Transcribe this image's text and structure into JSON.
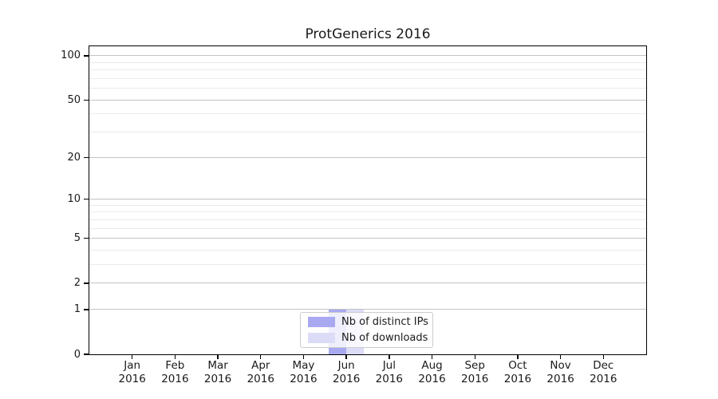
{
  "chart_data": {
    "type": "bar",
    "title": "ProtGenerics 2016",
    "year_label": "2016",
    "categories": [
      "Jan",
      "Feb",
      "Mar",
      "Apr",
      "May",
      "Jun",
      "Jul",
      "Aug",
      "Sep",
      "Oct",
      "Nov",
      "Dec"
    ],
    "series": [
      {
        "name": "Nb of distinct IPs",
        "color": "#a9a9f2",
        "values": [
          0,
          0,
          0,
          0,
          0,
          1,
          0,
          0,
          0,
          0,
          0,
          0
        ]
      },
      {
        "name": "Nb of downloads",
        "color": "#dcdcf7",
        "values": [
          0,
          0,
          0,
          0,
          0,
          1,
          0,
          0,
          0,
          0,
          0,
          0
        ]
      }
    ],
    "xlabel": "",
    "ylabel": "",
    "y_axis": {
      "scale": "log1p",
      "major_ticks": [
        0,
        1,
        2,
        5,
        10,
        20,
        50,
        100
      ],
      "minor_gridlines": [
        3,
        4,
        6,
        7,
        8,
        9,
        30,
        40,
        60,
        70,
        80,
        90
      ],
      "ylim": [
        0,
        116
      ]
    },
    "grid": "horizontal",
    "legend_position": "lower center",
    "colors": {
      "major_grid": "#c3c3c3",
      "minor_grid": "#eaeaea",
      "frame": "#000000",
      "text": "#1a1a1a",
      "legend_border": "#cccccc"
    }
  }
}
